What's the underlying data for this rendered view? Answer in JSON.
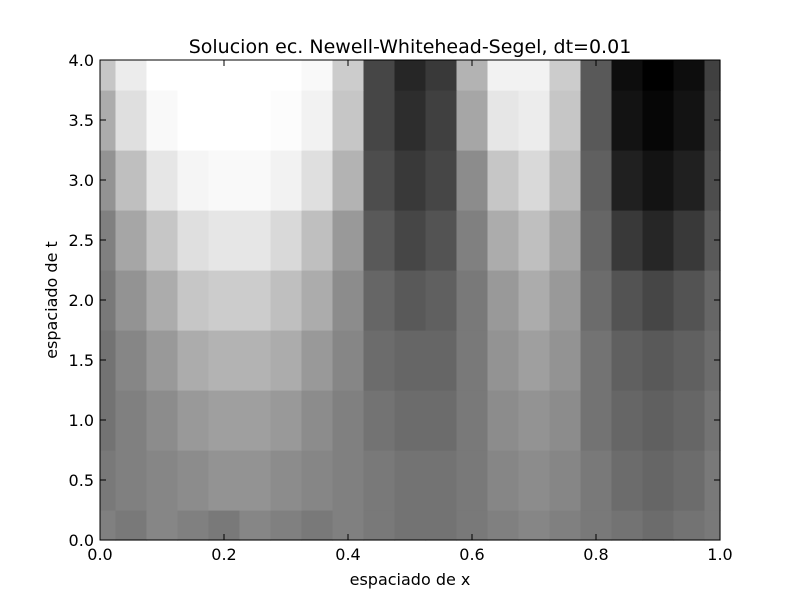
{
  "chart_data": {
    "type": "heatmap",
    "title": "Solucion ec. Newell-Whitehead-Segel, dt=0.01",
    "xlabel": "espaciado de x",
    "ylabel": "espaciado de t",
    "xlim": [
      0.0,
      1.0
    ],
    "ylim": [
      0.0,
      4.0
    ],
    "x_ticks": [
      "0.0",
      "0.2",
      "0.4",
      "0.6",
      "0.8",
      "1.0"
    ],
    "y_ticks": [
      "0.0",
      "0.5",
      "1.0",
      "1.5",
      "2.0",
      "2.5",
      "3.0",
      "3.5",
      "4.0"
    ],
    "colormap": "gray",
    "value_range": [
      -1.0,
      1.0
    ],
    "x": [
      0.0,
      0.05,
      0.1,
      0.15,
      0.2,
      0.25,
      0.3,
      0.35,
      0.4,
      0.45,
      0.5,
      0.55,
      0.6,
      0.65,
      0.7,
      0.75,
      0.8,
      0.85,
      0.9,
      0.95,
      1.0
    ],
    "t": [
      0.0,
      0.5,
      1.0,
      1.5,
      2.0,
      2.5,
      3.0,
      3.5,
      4.0
    ],
    "z": [
      [
        0.0,
        -0.05,
        0.05,
        0.0,
        -0.05,
        0.05,
        0.0,
        -0.05,
        0.0,
        -0.05,
        -0.1,
        -0.1,
        -0.05,
        0.0,
        0.05,
        0.0,
        -0.05,
        -0.1,
        -0.15,
        -0.1,
        -0.05
      ],
      [
        -0.05,
        0.0,
        0.05,
        0.1,
        0.15,
        0.15,
        0.1,
        0.05,
        0.0,
        -0.05,
        -0.1,
        -0.1,
        -0.05,
        0.05,
        0.1,
        0.05,
        -0.05,
        -0.15,
        -0.2,
        -0.15,
        -0.05
      ],
      [
        -0.1,
        0.0,
        0.1,
        0.2,
        0.25,
        0.25,
        0.2,
        0.1,
        0.0,
        -0.1,
        -0.15,
        -0.15,
        -0.05,
        0.1,
        0.15,
        0.1,
        -0.1,
        -0.2,
        -0.25,
        -0.2,
        -0.1
      ],
      [
        -0.1,
        0.05,
        0.2,
        0.35,
        0.4,
        0.4,
        0.35,
        0.2,
        0.05,
        -0.15,
        -0.2,
        -0.2,
        -0.05,
        0.15,
        0.25,
        0.15,
        -0.1,
        -0.25,
        -0.3,
        -0.25,
        -0.15
      ],
      [
        -0.05,
        0.15,
        0.35,
        0.55,
        0.6,
        0.6,
        0.5,
        0.35,
        0.1,
        -0.2,
        -0.3,
        -0.25,
        -0.05,
        0.2,
        0.35,
        0.2,
        -0.15,
        -0.35,
        -0.45,
        -0.35,
        -0.2
      ],
      [
        0.0,
        0.3,
        0.55,
        0.75,
        0.8,
        0.8,
        0.7,
        0.5,
        0.2,
        -0.3,
        -0.45,
        -0.35,
        0.0,
        0.35,
        0.5,
        0.3,
        -0.2,
        -0.55,
        -0.7,
        -0.55,
        -0.3
      ],
      [
        0.15,
        0.5,
        0.8,
        0.92,
        0.95,
        0.95,
        0.9,
        0.75,
        0.4,
        -0.4,
        -0.55,
        -0.45,
        0.1,
        0.55,
        0.7,
        0.45,
        -0.25,
        -0.75,
        -0.85,
        -0.75,
        -0.4
      ],
      [
        0.35,
        0.75,
        0.95,
        1.0,
        1.0,
        1.0,
        0.98,
        0.9,
        0.55,
        -0.45,
        -0.65,
        -0.5,
        0.3,
        0.8,
        0.85,
        0.55,
        -0.3,
        -0.85,
        -0.95,
        -0.85,
        -0.45
      ],
      [
        0.55,
        0.85,
        1.0,
        1.0,
        1.0,
        1.0,
        1.0,
        0.95,
        0.6,
        -0.45,
        -0.7,
        -0.55,
        0.4,
        0.9,
        0.9,
        0.6,
        -0.3,
        -0.9,
        -1.0,
        -0.9,
        -0.5
      ]
    ]
  }
}
